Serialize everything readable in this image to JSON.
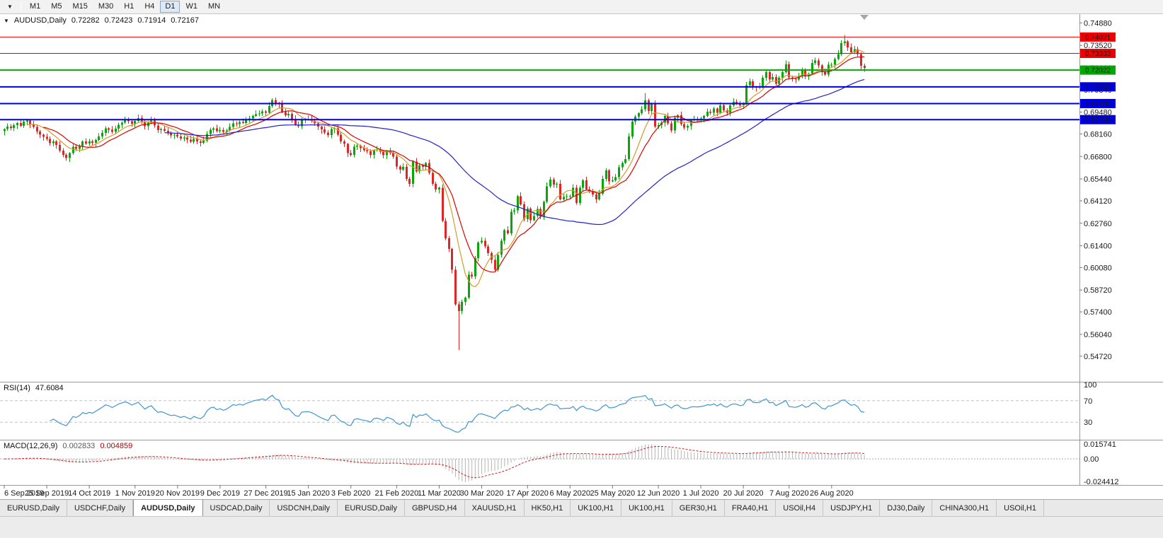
{
  "toolbar": {
    "chart_selector_icon": "▼",
    "timeframes": [
      "M1",
      "M5",
      "M15",
      "M30",
      "H1",
      "H4",
      "D1",
      "W1",
      "MN"
    ],
    "active_timeframe": "D1"
  },
  "chart_header": {
    "dropdown_icon": "▼",
    "symbol_title": "AUDUSD,Daily",
    "open": "0.72282",
    "high": "0.72423",
    "low": "0.71914",
    "close": "0.72167"
  },
  "price_axis": {
    "ticks": [
      "0.74880",
      "0.73520",
      "0.72160",
      "0.70840",
      "0.69480",
      "0.68160",
      "0.66800",
      "0.65440",
      "0.64120",
      "0.62760",
      "0.61400",
      "0.60080",
      "0.58720",
      "0.57400",
      "0.56040",
      "0.54720"
    ]
  },
  "levels": [
    {
      "label": "0.74021",
      "price": 0.74021,
      "color": "#ee0000",
      "line_width": 1
    },
    {
      "label": "0.73033",
      "price": 0.73033,
      "color": "#ee0000",
      "line_width": 1
    },
    {
      "label": "0.72022",
      "price": 0.72022,
      "color": "#00a800",
      "line_width": 2
    },
    {
      "label": "0.71010",
      "price": 0.7101,
      "color": "#0000dd",
      "line_width": 2
    },
    {
      "label": "0.69999",
      "price": 0.69999,
      "color": "#0000dd",
      "line_width": 2
    },
    {
      "label": "0.69025",
      "price": 0.69025,
      "color": "#0000dd",
      "line_width": 2
    }
  ],
  "rsi_panel": {
    "name": "RSI(14)",
    "value": "47.6084",
    "axis_labels": [
      "100",
      "70",
      "30"
    ],
    "upper_level": 70,
    "lower_level": 30,
    "line_color": "#3e96d2"
  },
  "macd_panel": {
    "name": "MACD(12,26,9)",
    "macd_value": "0.002833",
    "signal_value": "0.004859",
    "axis_max_label": "0.015741",
    "axis_zero_label": "0.00",
    "axis_min_label": "-0.024412",
    "histogram_color": "#b4b4b4",
    "signal_color": "#d42020"
  },
  "tabs": {
    "items": [
      "EURUSD,Daily",
      "USDCHF,Daily",
      "AUDUSD,Daily",
      "USDCAD,Daily",
      "USDCNH,Daily",
      "EURUSD,Daily",
      "GBPUSD,H4",
      "XAUUSD,H1",
      "HK50,H1",
      "UK100,H1",
      "UK100,H1",
      "GER30,H1",
      "FRA40,H1",
      "USOil,H4",
      "USDJPY,H1",
      "DJ30,Daily",
      "CHINA300,H1",
      "USOil,H1"
    ],
    "active_index": 2
  },
  "chart_data": {
    "type": "candlestick",
    "title": "AUDUSD,Daily",
    "symbol": "AUDUSD",
    "timeframe": "Daily",
    "price_range": [
      0.533,
      0.7515
    ],
    "x_labels": [
      "6 Sep 2019",
      "25 Sep 2019",
      "14 Oct 2019",
      "1 Nov 2019",
      "20 Nov 2019",
      "9 Dec 2019",
      "27 Dec 2019",
      "15 Jan 2020",
      "3 Feb 2020",
      "21 Feb 2020",
      "11 Mar 2020",
      "30 Mar 2020",
      "17 Apr 2020",
      "6 May 2020",
      "25 May 2020",
      "12 Jun 2020",
      "1 Jul 2020",
      "20 Jul 2020",
      "7 Aug 2020",
      "26 Aug 2020"
    ],
    "x_label_indices": [
      0,
      13,
      26,
      40,
      53,
      66,
      80,
      93,
      106,
      120,
      133,
      146,
      160,
      173,
      186,
      200,
      213,
      226,
      240,
      253
    ],
    "first_open": 0.6832,
    "wick": 0.002,
    "closes": [
      0.6845,
      0.686,
      0.6852,
      0.687,
      0.6882,
      0.6866,
      0.689,
      0.6898,
      0.6875,
      0.6858,
      0.683,
      0.6812,
      0.6798,
      0.6785,
      0.676,
      0.6772,
      0.675,
      0.6715,
      0.669,
      0.6671,
      0.67,
      0.6738,
      0.6726,
      0.6742,
      0.677,
      0.6758,
      0.677,
      0.6762,
      0.678,
      0.68,
      0.6822,
      0.685,
      0.6842,
      0.6828,
      0.6848,
      0.6872,
      0.6885,
      0.69,
      0.6892,
      0.6878,
      0.6895,
      0.6912,
      0.6888,
      0.6862,
      0.6885,
      0.6898,
      0.6868,
      0.684,
      0.6846,
      0.6836,
      0.682,
      0.6808,
      0.6812,
      0.68,
      0.6788,
      0.6795,
      0.6782,
      0.6768,
      0.6785,
      0.677,
      0.6762,
      0.6776,
      0.6815,
      0.6842,
      0.685,
      0.6832,
      0.684,
      0.6828,
      0.6838,
      0.6858,
      0.688,
      0.6876,
      0.6888,
      0.6882,
      0.69,
      0.691,
      0.6925,
      0.6935,
      0.694,
      0.6952,
      0.6945,
      0.6985,
      0.7021,
      0.7,
      0.6995,
      0.6948,
      0.693,
      0.6938,
      0.6905,
      0.6872,
      0.6862,
      0.69,
      0.6903,
      0.6905,
      0.6895,
      0.688,
      0.686,
      0.6843,
      0.6825,
      0.681,
      0.6845,
      0.685,
      0.6812,
      0.677,
      0.6755,
      0.67,
      0.669,
      0.6738,
      0.6745,
      0.673,
      0.6718,
      0.6712,
      0.669,
      0.6718,
      0.6722,
      0.6708,
      0.6688,
      0.6712,
      0.67,
      0.668,
      0.662,
      0.66,
      0.6618,
      0.6545,
      0.6515,
      0.665,
      0.659,
      0.6625,
      0.6618,
      0.664,
      0.658,
      0.6515,
      0.648,
      0.649,
      0.629,
      0.6185,
      0.612,
      0.5995,
      0.5785,
      0.5744,
      0.58,
      0.5825,
      0.5965,
      0.5955,
      0.6065,
      0.616,
      0.617,
      0.6135,
      0.6095,
      0.6055,
      0.5995,
      0.6085,
      0.617,
      0.6235,
      0.6215,
      0.6345,
      0.6355,
      0.644,
      0.639,
      0.63,
      0.6365,
      0.6295,
      0.632,
      0.6362,
      0.6318,
      0.6405,
      0.65,
      0.654,
      0.651,
      0.6515,
      0.642,
      0.6435,
      0.644,
      0.644,
      0.649,
      0.64,
      0.649,
      0.6535,
      0.648,
      0.647,
      0.645,
      0.642,
      0.6455,
      0.6545,
      0.6595,
      0.653,
      0.6535,
      0.6555,
      0.6615,
      0.664,
      0.6665,
      0.68,
      0.689,
      0.692,
      0.6942,
      0.6965,
      0.702,
      0.6955,
      0.7,
      0.686,
      0.687,
      0.6885,
      0.6925,
      0.688,
      0.6838,
      0.6915,
      0.693,
      0.6875,
      0.6855,
      0.6865,
      0.69,
      0.6905,
      0.6902,
      0.691,
      0.6925,
      0.695,
      0.6945,
      0.697,
      0.6945,
      0.6988,
      0.696,
      0.6945,
      0.6988,
      0.701,
      0.7005,
      0.699,
      0.7,
      0.711,
      0.7135,
      0.71,
      0.7095,
      0.7105,
      0.7155,
      0.719,
      0.7145,
      0.716,
      0.712,
      0.7155,
      0.719,
      0.7238,
      0.7157,
      0.715,
      0.7145,
      0.7165,
      0.72,
      0.7165,
      0.718,
      0.7245,
      0.726,
      0.723,
      0.719,
      0.7175,
      0.7235,
      0.7235,
      0.727,
      0.73,
      0.7365,
      0.7376,
      0.734,
      0.731,
      0.733,
      0.73,
      0.7228,
      0.72167
    ],
    "overrides": {
      "82": {
        "high": 0.7032
      },
      "139": {
        "low": 0.551
      },
      "196": {
        "high": 0.7064
      },
      "257": {
        "high": 0.7414
      }
    },
    "current_candle": {
      "open": 0.72282,
      "high": 0.72423,
      "low": 0.71914,
      "close": 0.72167
    },
    "candle_up_color": "#0aa60a",
    "candle_down_color": "#dd2626",
    "moving_averages": [
      {
        "period": 8,
        "color": "#d89b2a"
      },
      {
        "period": 13,
        "color": "#e00000"
      },
      {
        "period": 50,
        "color": "#2222cc"
      }
    ],
    "indicators": {
      "rsi_period": 14,
      "macd_fast": 12,
      "macd_slow": 26,
      "macd_signal": 9
    }
  }
}
